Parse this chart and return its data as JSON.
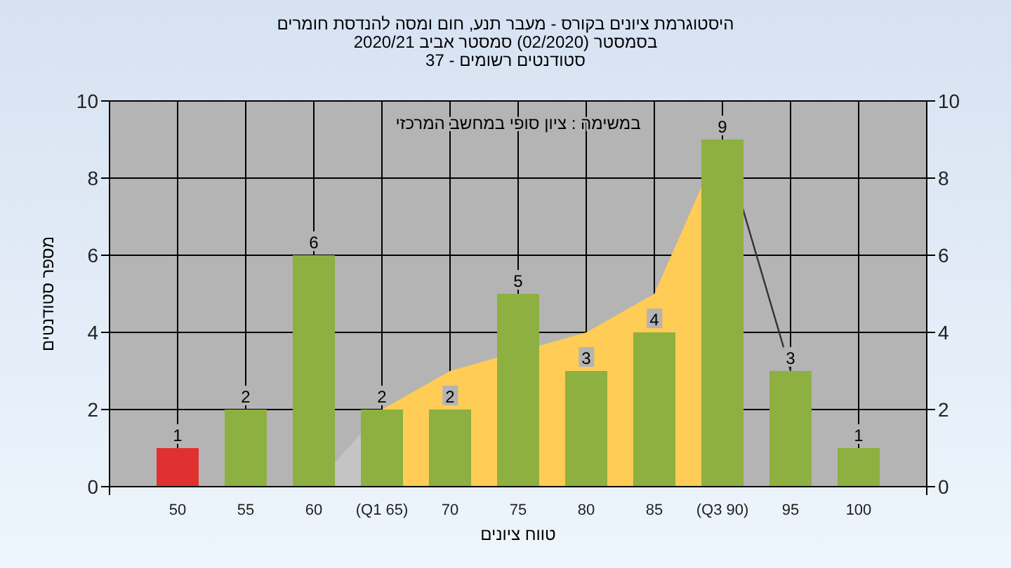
{
  "chart_data": {
    "type": "bar",
    "title": "היסטוגרמת ציונים בקורס - מעבר תנע, חום ומסה להנדסת חומרים",
    "subtitle": "בסמסטר  (02/2020)  סמסטר אביב 2020/21\nסטודנטים רשומים - 37",
    "xlabel": "טווח ציונים",
    "ylabel": "מספר סטודנטים",
    "annotations": [
      "במשימה : ציון סופי במחשב המרכזי"
    ],
    "categories": [
      "50",
      "55",
      "60",
      "(Q1 65)",
      "70",
      "75",
      "80",
      "85",
      "(Q3 90)",
      "95",
      "100"
    ],
    "series": [
      {
        "type": "area",
        "color": "#c4c4c4",
        "values": [
          null,
          null,
          0,
          2,
          null,
          null,
          null,
          null,
          null,
          null,
          null
        ]
      },
      {
        "type": "area",
        "color": "#ffcc55",
        "values": [
          null,
          null,
          null,
          2,
          3,
          null,
          4,
          5,
          9,
          null,
          null
        ]
      },
      {
        "type": "line",
        "color": "#333333",
        "values": [
          null,
          null,
          null,
          null,
          null,
          null,
          null,
          null,
          9,
          3,
          null
        ]
      },
      {
        "value_labels": [
          "1",
          "2",
          "6",
          "2",
          "2",
          "5",
          "3",
          "4",
          "9",
          "3",
          "1"
        ],
        "colors": [
          "#e03030",
          "#8db040",
          "#8db040",
          "#8db040",
          "#8db040",
          "#8db040",
          "#8db040",
          "#8db040",
          "#8db040",
          "#8db040",
          "#8db040"
        ],
        "values": [
          1,
          2,
          6,
          2,
          2,
          5,
          3,
          4,
          9,
          3,
          1
        ]
      }
    ],
    "ylim": [
      0,
      10
    ],
    "yticks": [
      0,
      2,
      4,
      6,
      8,
      10
    ],
    "y2lim": [
      0,
      10
    ],
    "y2ticks": [
      0,
      2,
      4,
      6,
      8,
      10
    ],
    "grid": true
  }
}
